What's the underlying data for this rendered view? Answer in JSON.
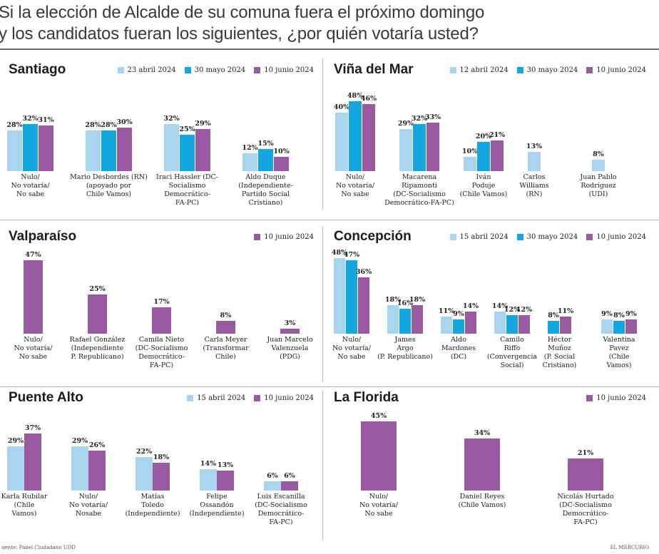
{
  "headline": {
    "line1": "Si la elección de Alcalde de su comuna fuera el próximo domingo",
    "line2": "y los candidatos fueran los siguientes, ¿por quién votaría usted?"
  },
  "colors": {
    "light": "#a9d4ee",
    "mid": "#13a6df",
    "purple": "#9a5aa2"
  },
  "footer": {
    "left": "uente: Panel Ciudadano UDD",
    "right": "EL MERCURIO"
  },
  "chart_data": [
    {
      "type": "bar",
      "title": "Santiago",
      "series": [
        {
          "name": "23 abril 2024",
          "color": "light",
          "values": [
            28,
            28,
            32,
            12
          ]
        },
        {
          "name": "30 mayo 2024",
          "color": "mid",
          "values": [
            32,
            28,
            25,
            15
          ]
        },
        {
          "name": "10 junio 2024",
          "color": "purple",
          "values": [
            31,
            30,
            29,
            10
          ]
        }
      ],
      "categories": [
        "Nulo/\nNo votaría/\nNo sabe",
        "Mario Desbordes (RN)\n(apoyado por\nChile Vamos)",
        "Iraci Hassler (DC-\nSocialismo\nDemocrático-\nFA-PC)",
        "Aldo Duque\n(Independiente-\nPartido Social\nCristiano)"
      ]
    },
    {
      "type": "bar",
      "title": "Viña del Mar",
      "series": [
        {
          "name": "12 abril 2024",
          "color": "light",
          "values": [
            40,
            29,
            10,
            13,
            8
          ]
        },
        {
          "name": "30 mayo 2024",
          "color": "mid",
          "values": [
            48,
            32,
            20,
            null,
            null
          ]
        },
        {
          "name": "10 junio 2024",
          "color": "purple",
          "values": [
            46,
            33,
            21,
            null,
            null
          ]
        }
      ],
      "categories": [
        "Nulo/\nNo votaría/\nNo sabe",
        "Macarena\nRipamonti\n(DC-Socialismo\nDemocrático-FA-PC)",
        "Iván\nPoduje\n(Chile Vamos)",
        "Carlos\nWilliams\n(RN)",
        "Juan Pablo\nRodríguez\n(UDI)"
      ]
    },
    {
      "type": "bar",
      "title": "Valparaíso",
      "series": [
        {
          "name": "10 junio 2024",
          "color": "purple",
          "values": [
            47,
            25,
            17,
            8,
            3
          ]
        }
      ],
      "categories": [
        "Nulo/\nNo votaría/\nNo sabe",
        "Rafael González\n(Independiente\nP. Republicano)",
        "Camila Nieto\n(DC-Socialismo\nDemocrático-\nFA-PC)",
        "Carla Meyer\n(Transformar\nChile)",
        "Juan Marcelo\nValenzuela\n(PDG)"
      ]
    },
    {
      "type": "bar",
      "title": "Concepción",
      "series": [
        {
          "name": "15 abril 2024",
          "color": "light",
          "values": [
            48,
            18,
            11,
            14,
            null,
            9
          ]
        },
        {
          "name": "30 mayo 2024",
          "color": "mid",
          "values": [
            47,
            16,
            9,
            12,
            8,
            8
          ]
        },
        {
          "name": "10 junio 2024",
          "color": "purple",
          "values": [
            36,
            18,
            14,
            12,
            11,
            9
          ]
        }
      ],
      "categories": [
        "Nulo/\nNo votaría/\nNo sabe",
        "James\nArgo\n(P. Republicano)",
        "Aldo\nMardones\n(DC)",
        "Camilo\nRiffo\n(Convergencia\nSocial)",
        "Héctor\nMuñoz\n(P. Social\nCristiano)",
        "Valentina\nPavez\n(Chile\nVamos)"
      ]
    },
    {
      "type": "bar",
      "title": "Puente Alto",
      "series": [
        {
          "name": "15 abril 2024",
          "color": "light",
          "values": [
            29,
            29,
            22,
            14,
            6
          ]
        },
        {
          "name": "10 junio 2024",
          "color": "purple",
          "values": [
            37,
            26,
            18,
            13,
            6
          ]
        }
      ],
      "categories": [
        "Karla Rubilar\n(Chile\nVamos)",
        "Nulo/\nNo votaría/\nNosabe",
        "Matías\nToledo\n(Independiente)",
        "Felipe\nOssandón\n(Independiente)",
        "Luis Escanilla\n(DC-Socialismo\nDemocrático-\nFA-PC)"
      ]
    },
    {
      "type": "bar",
      "title": "La Florida",
      "series": [
        {
          "name": "10 junio 2024",
          "color": "purple",
          "values": [
            45,
            34,
            21
          ]
        }
      ],
      "categories": [
        "Nulo/\nNo votaría/\nNo sabe",
        "Daniel Reyes\n(Chile Vamos)",
        "Nicolás Hurtado\n(DC-Socialismo\nDemocrático-\nFA-PC)"
      ]
    }
  ]
}
